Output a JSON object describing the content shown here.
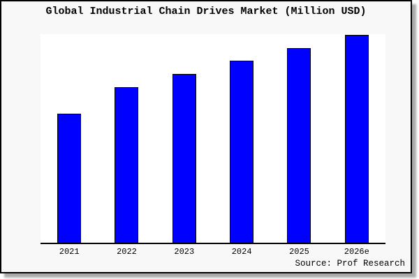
{
  "title": "Global Industrial Chain Drives Market (Million USD)",
  "source": "Source: Prof Research",
  "colors": {
    "bar_fill": "#0000ff",
    "bar_border": "#000000",
    "frame_background": "#f8f8f8",
    "plot_background": "#ffffff",
    "frame_border": "#000000",
    "text": "#000000"
  },
  "chart_data": {
    "type": "bar",
    "title": "Global Industrial Chain Drives Market (Million USD)",
    "categories": [
      "2021",
      "2022",
      "2023",
      "2024",
      "2025",
      "2026e"
    ],
    "values": [
      100,
      120.5,
      130.8,
      141,
      150.8,
      161
    ],
    "series_note": "no y-axis labels shown; values are relative, scaled so 2021 = 100",
    "xlabel": "",
    "ylabel": "",
    "ylim": [
      0,
      161.5
    ],
    "grid": false,
    "legend_position": "none",
    "source_caption": "Source: Prof Research"
  }
}
